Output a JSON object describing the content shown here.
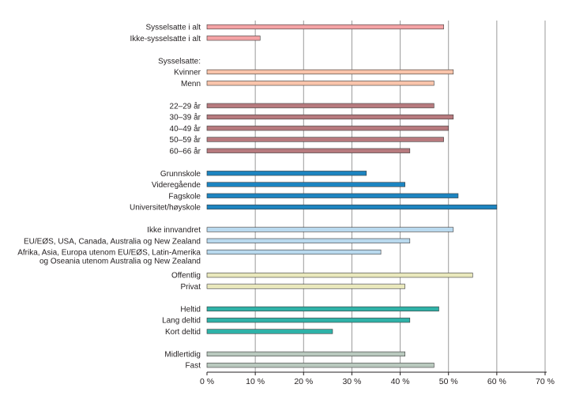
{
  "chart_data": {
    "type": "bar",
    "orientation": "horizontal",
    "title": "",
    "xlabel": "",
    "ylabel": "",
    "xlim": [
      0,
      70
    ],
    "x_ticks": [
      0,
      10,
      20,
      30,
      40,
      50,
      60,
      70
    ],
    "x_tick_labels": [
      "0 %",
      "10 %",
      "20 %",
      "30 %",
      "40 %",
      "50 %",
      "60 %",
      "70 %"
    ],
    "grid": true,
    "legend": "none",
    "rows": [
      {
        "label": "Sysselsatte i alt",
        "value": 49,
        "color": "#f4a3a5"
      },
      {
        "label": "Ikke-sysselsatte i alt",
        "value": 11,
        "color": "#f4a3a5"
      },
      {
        "label": "",
        "value": null
      },
      {
        "label": "Sysselsatte:",
        "value": null
      },
      {
        "label": "Kvinner",
        "value": 51,
        "color": "#f9c4ab"
      },
      {
        "label": "Menn",
        "value": 47,
        "color": "#f9c4ab"
      },
      {
        "label": "",
        "value": null
      },
      {
        "label": "22–29 år",
        "value": 47,
        "color": "#b77a7e"
      },
      {
        "label": "30–39 år",
        "value": 51,
        "color": "#b77a7e"
      },
      {
        "label": "40–49 år",
        "value": 50,
        "color": "#b77a7e"
      },
      {
        "label": "50–59 år",
        "value": 49,
        "color": "#b77a7e"
      },
      {
        "label": "60–66 år",
        "value": 42,
        "color": "#b77a7e"
      },
      {
        "label": "",
        "value": null
      },
      {
        "label": "Grunnskole",
        "value": 33,
        "color": "#1d84c0"
      },
      {
        "label": "Videregående",
        "value": 41,
        "color": "#1d84c0"
      },
      {
        "label": "Fagskole",
        "value": 52,
        "color": "#1d84c0"
      },
      {
        "label": "Universitet/høyskole",
        "value": 60,
        "color": "#1d84c0"
      },
      {
        "label": "",
        "value": null
      },
      {
        "label": "Ikke innvandret",
        "value": 51,
        "color": "#b9d9ee"
      },
      {
        "label": "EU/EØS, USA, Canada, Australia og New Zealand",
        "value": 42,
        "color": "#b9d9ee"
      },
      {
        "label": "Afrika, Asia, Europa utenom EU/EØS, Latin-Amerika",
        "label2": "og  Oseania utenom Australia og New Zealand",
        "value": 36,
        "color": "#b9d9ee"
      },
      {
        "label": "Offentlig",
        "value": 55,
        "color": "#e9e8bc"
      },
      {
        "label": "Privat",
        "value": 41,
        "color": "#e9e8bc"
      },
      {
        "label": "",
        "value": null
      },
      {
        "label": "Heltid",
        "value": 48,
        "color": "#2fb2a8"
      },
      {
        "label": "Lang deltid",
        "value": 42,
        "color": "#2fb2a8"
      },
      {
        "label": "Kort deltid",
        "value": 26,
        "color": "#2fb2a8"
      },
      {
        "label": "",
        "value": null
      },
      {
        "label": "Midlertidig",
        "value": 41,
        "color": "#b9c9be"
      },
      {
        "label": "Fast",
        "value": 47,
        "color": "#b9c9be"
      }
    ]
  }
}
